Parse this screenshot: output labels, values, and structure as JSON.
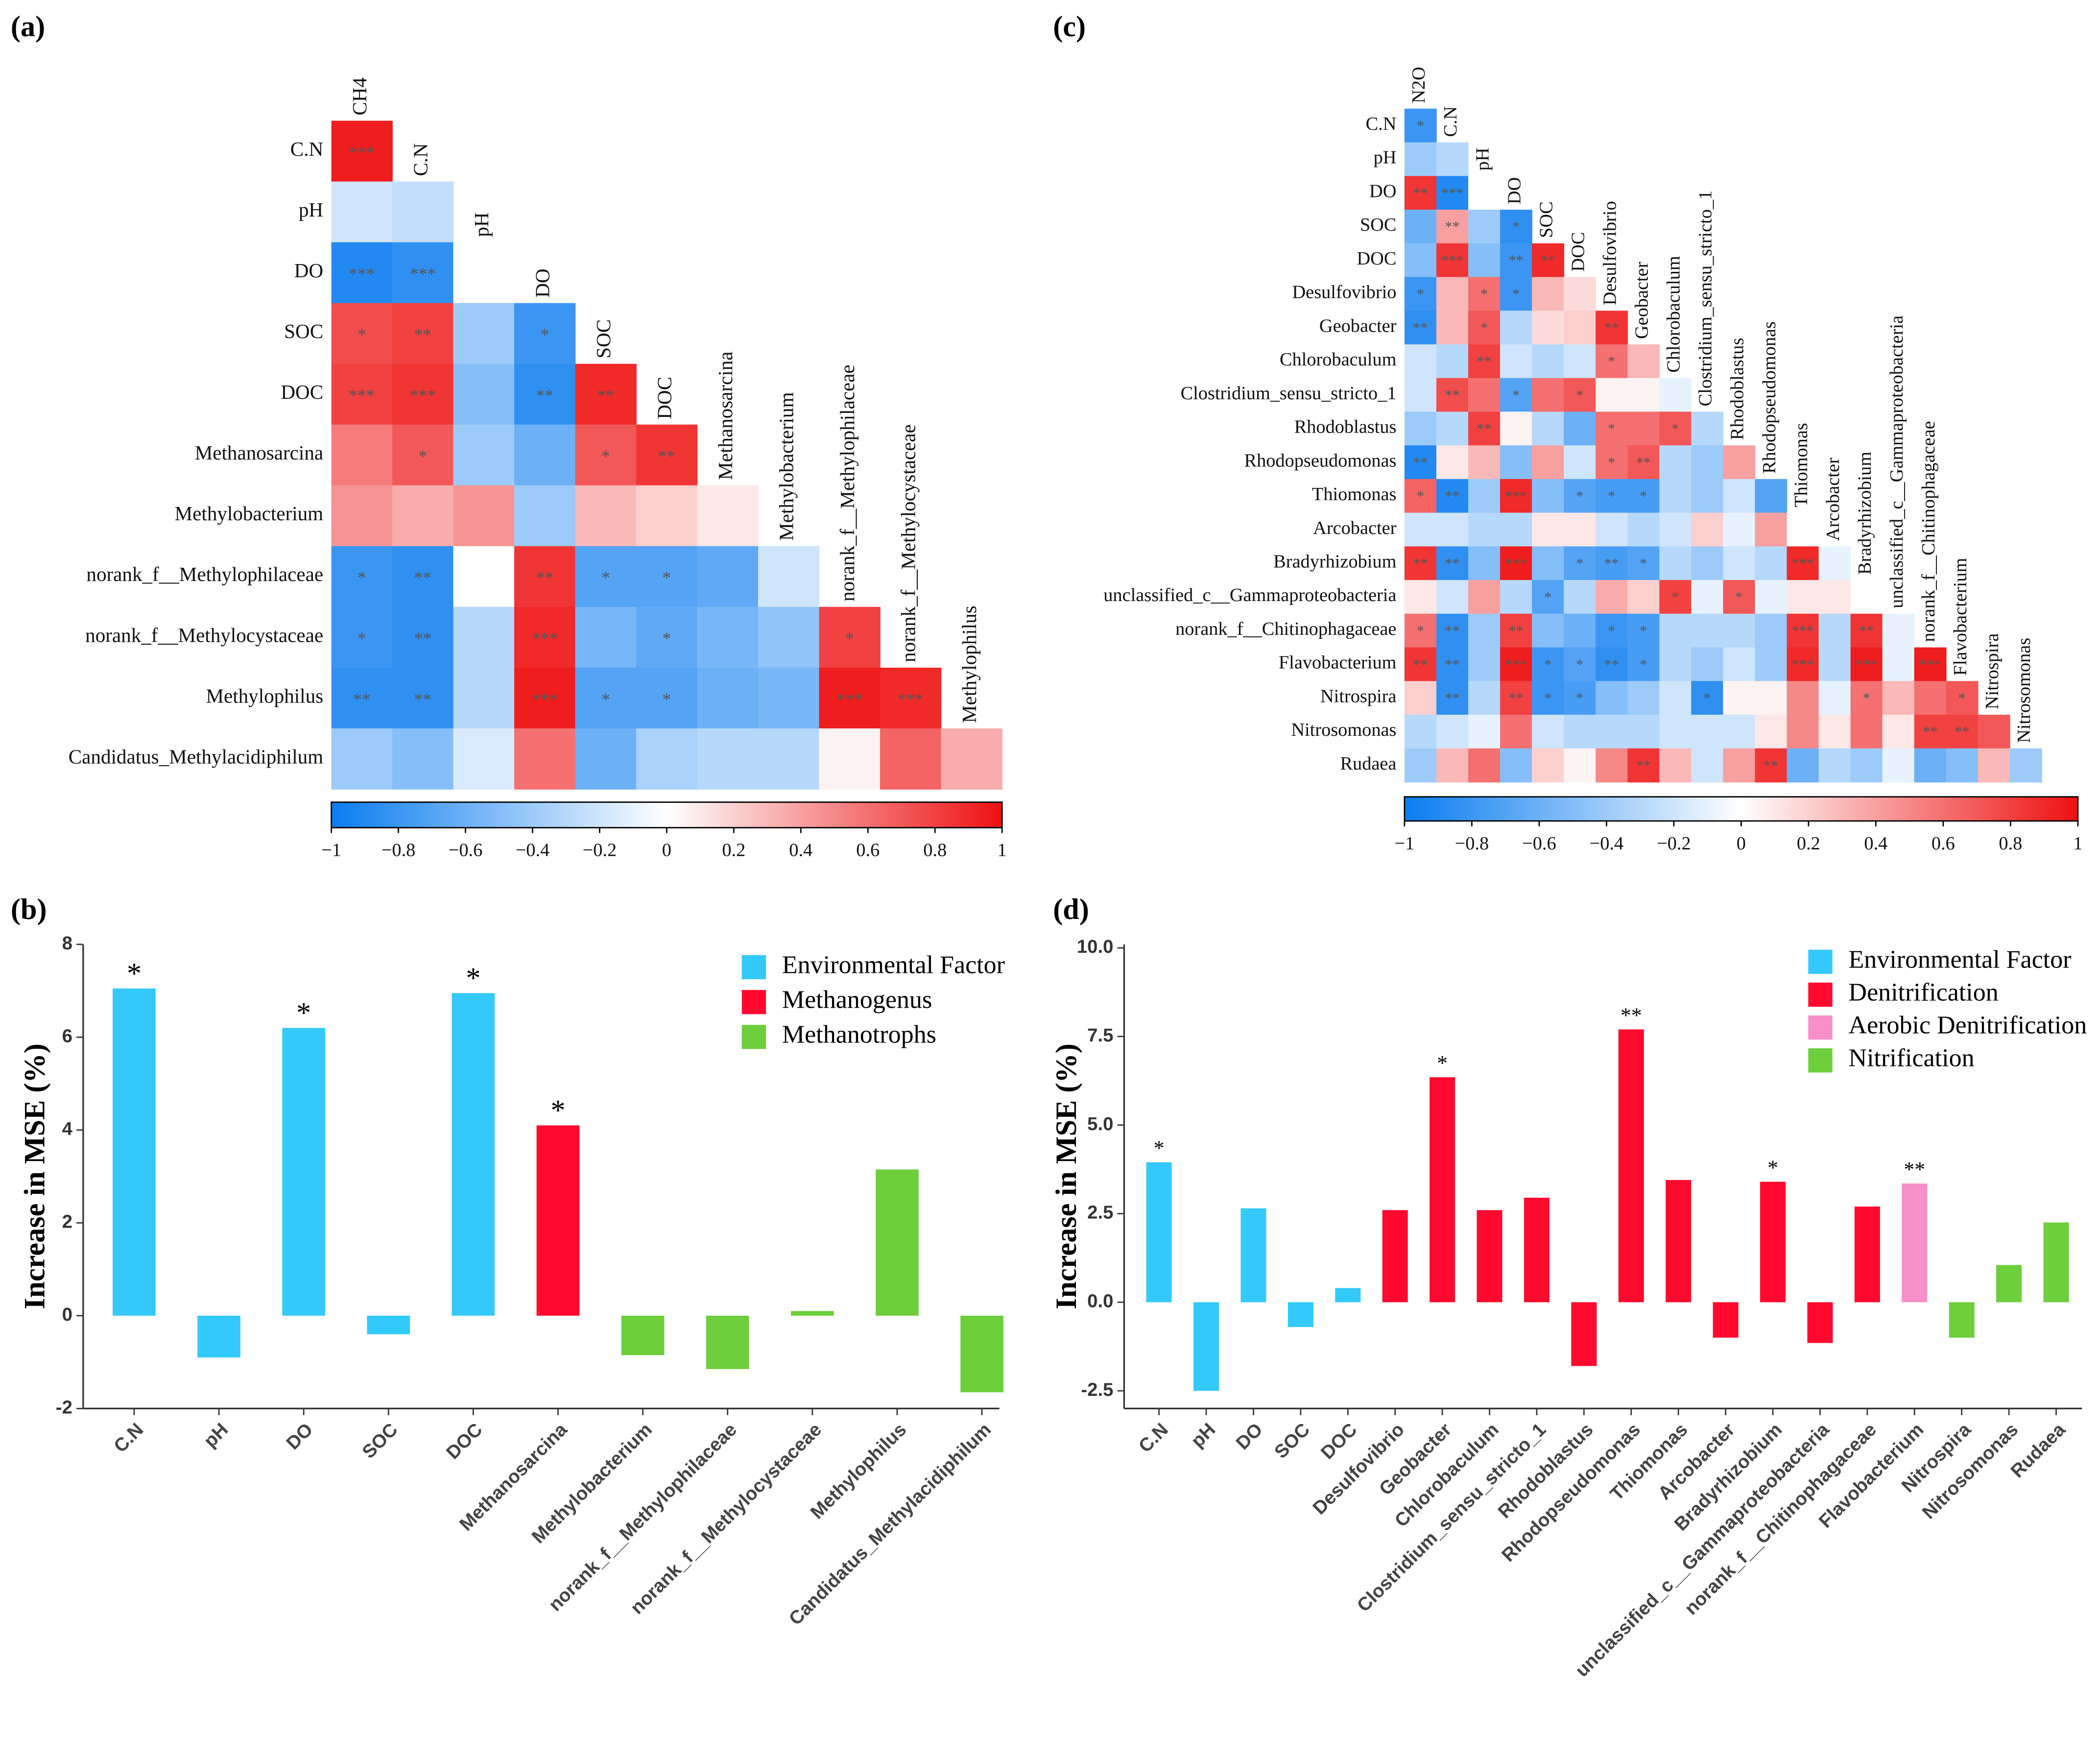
{
  "chart_data": [
    {
      "type": "heatmap",
      "panel": "(a)",
      "rows": [
        "C.N",
        "pH",
        "DO",
        "SOC",
        "DOC",
        "Methanosarcina",
        "Methylobacterium",
        "norank_f__Methylophilaceae",
        "norank_f__Methylocystaceae",
        "Methylophilus",
        "Candidatus_Methylacidiphilum"
      ],
      "columns": [
        "CH4",
        "C.N",
        "pH",
        "DO",
        "SOC",
        "DOC",
        "Methanosarcina",
        "Methylobacterium",
        "norank_f__Methylophilaceae",
        "norank_f__Methylocystaceae",
        "Methylophilus"
      ],
      "matrix": [
        [
          0.95
        ],
        [
          -0.2,
          -0.25
        ],
        [
          -0.9,
          -0.85,
          0.0
        ],
        [
          0.75,
          0.8,
          -0.4,
          -0.8
        ],
        [
          0.8,
          0.85,
          -0.5,
          -0.85,
          0.9
        ],
        [
          0.55,
          0.7,
          -0.4,
          -0.6,
          0.7,
          0.85
        ],
        [
          0.45,
          0.35,
          0.45,
          -0.4,
          0.3,
          0.2,
          0.1
        ],
        [
          -0.8,
          -0.85,
          0.0,
          0.85,
          -0.7,
          -0.7,
          -0.65,
          -0.2
        ],
        [
          -0.8,
          -0.85,
          -0.3,
          0.9,
          -0.55,
          -0.65,
          -0.55,
          -0.45,
          0.8
        ],
        [
          -0.85,
          -0.85,
          -0.3,
          0.95,
          -0.7,
          -0.7,
          -0.6,
          -0.55,
          0.95,
          0.9
        ],
        [
          -0.4,
          -0.5,
          -0.15,
          0.6,
          -0.6,
          -0.35,
          -0.3,
          -0.3,
          0.05,
          0.65,
          0.35
        ]
      ],
      "stars": [
        [
          "***"
        ],
        [
          null,
          null
        ],
        [
          "***",
          "***",
          null
        ],
        [
          "*",
          "**",
          null,
          "*"
        ],
        [
          "***",
          "***",
          null,
          "**",
          "**"
        ],
        [
          null,
          "*",
          null,
          null,
          "*",
          "**"
        ],
        [
          null,
          null,
          null,
          null,
          null,
          null,
          null
        ],
        [
          "*",
          "**",
          null,
          "**",
          "*",
          "*",
          null,
          null
        ],
        [
          "*",
          "**",
          null,
          "***",
          null,
          "*",
          null,
          null,
          "*"
        ],
        [
          "**",
          "**",
          null,
          "***",
          "*",
          "*",
          null,
          null,
          "***",
          "***"
        ],
        [
          null,
          null,
          null,
          null,
          null,
          null,
          null,
          null,
          null,
          null,
          null
        ]
      ],
      "zlim": [
        -1,
        1
      ],
      "zticks": [
        {
          "value": -1,
          "label": "−1"
        },
        {
          "value": -0.8,
          "label": "−0.8"
        },
        {
          "value": -0.6,
          "label": "−0.6"
        },
        {
          "value": -0.4,
          "label": "−0.4"
        },
        {
          "value": -0.2,
          "label": "−0.2"
        },
        0,
        0.2,
        0.4,
        0.6,
        0.8,
        1
      ],
      "colors": [
        "#0a7cf0",
        "#ffffff",
        "#ee1111"
      ]
    },
    {
      "type": "heatmap",
      "panel": "(c)",
      "rows": [
        "C.N",
        "pH",
        "DO",
        "SOC",
        "DOC",
        "Desulfovibrio",
        "Geobacter",
        "Chlorobaculum",
        "Clostridium_sensu_stricto_1",
        "Rhodoblastus",
        "Rhodopseudomonas",
        "Thiomonas",
        "Arcobacter",
        "Bradyrhizobium",
        "unclassified_c__Gammaproteobacteria",
        "norank_f__Chitinophagaceae",
        "Flavobacterium",
        "Nitrospira",
        "Nitrosomonas",
        "Rudaea"
      ],
      "columns": [
        "N2O",
        "C.N",
        "pH",
        "DO",
        "SOC",
        "DOC",
        "Desulfovibrio",
        "Geobacter",
        "Chlorobaculum",
        "Clostridium_sensu_stricto_1",
        "Rhodoblastus",
        "Rhodopseudomonas",
        "Thiomonas",
        "Arcobacter",
        "Bradyrhizobium",
        "unclassified_c__Gammaproteobacteria",
        "norank_f__Chitinophagaceae",
        "Flavobacterium",
        "Nitrospira",
        "Nitrosomonas"
      ],
      "matrix": [
        [
          -0.8
        ],
        [
          -0.4,
          -0.3
        ],
        [
          0.85,
          -0.9,
          0.0
        ],
        [
          -0.6,
          0.4,
          -0.4,
          -0.85
        ],
        [
          -0.5,
          0.85,
          -0.5,
          -0.8,
          0.9
        ],
        [
          -0.8,
          0.3,
          0.6,
          -0.8,
          0.3,
          0.15
        ],
        [
          -0.85,
          0.3,
          0.7,
          -0.3,
          0.15,
          0.2,
          0.85
        ],
        [
          -0.2,
          -0.3,
          0.8,
          -0.2,
          -0.3,
          -0.2,
          0.6,
          0.3
        ],
        [
          -0.2,
          0.75,
          0.6,
          -0.7,
          0.6,
          0.7,
          0.05,
          0.05,
          -0.1
        ],
        [
          -0.4,
          -0.3,
          0.8,
          0.05,
          -0.3,
          -0.6,
          0.6,
          0.6,
          0.7,
          -0.3
        ],
        [
          -0.9,
          0.1,
          0.3,
          -0.5,
          0.4,
          -0.2,
          0.6,
          0.7,
          -0.3,
          -0.4,
          0.4
        ],
        [
          0.65,
          -0.9,
          -0.4,
          0.9,
          -0.5,
          -0.7,
          -0.75,
          -0.75,
          -0.3,
          -0.4,
          -0.2,
          -0.7
        ],
        [
          -0.2,
          -0.2,
          -0.3,
          -0.3,
          0.1,
          0.1,
          -0.2,
          -0.3,
          -0.2,
          0.2,
          -0.1,
          0.4,
          0.0
        ],
        [
          0.85,
          -0.85,
          -0.5,
          0.95,
          -0.5,
          -0.7,
          -0.75,
          -0.7,
          -0.3,
          -0.4,
          -0.2,
          -0.3,
          0.9,
          -0.1
        ],
        [
          0.1,
          -0.2,
          0.4,
          -0.3,
          -0.7,
          -0.3,
          0.35,
          0.2,
          0.8,
          -0.1,
          0.7,
          -0.1,
          0.1,
          0.1,
          0.0
        ],
        [
          0.6,
          -0.85,
          -0.4,
          0.8,
          -0.5,
          -0.6,
          -0.8,
          -0.75,
          -0.3,
          -0.3,
          -0.3,
          -0.4,
          0.85,
          -0.3,
          0.85,
          -0.1
        ],
        [
          0.85,
          -0.85,
          -0.4,
          0.95,
          -0.8,
          -0.7,
          -0.85,
          -0.75,
          -0.3,
          -0.4,
          -0.2,
          -0.4,
          0.9,
          -0.3,
          0.95,
          -0.1,
          0.95
        ],
        [
          0.2,
          -0.85,
          -0.3,
          0.8,
          -0.8,
          -0.75,
          -0.5,
          -0.4,
          -0.2,
          -0.85,
          0.05,
          0.05,
          0.5,
          -0.1,
          0.6,
          0.3,
          0.6,
          0.7
        ],
        [
          -0.3,
          -0.2,
          -0.1,
          0.6,
          -0.2,
          -0.3,
          -0.3,
          -0.3,
          -0.2,
          -0.2,
          -0.2,
          0.1,
          0.5,
          0.1,
          0.6,
          0.1,
          0.8,
          0.8,
          0.7
        ],
        [
          -0.4,
          0.3,
          0.6,
          -0.5,
          0.2,
          0.05,
          0.5,
          0.85,
          0.3,
          -0.2,
          0.4,
          0.85,
          -0.6,
          -0.3,
          -0.4,
          -0.1,
          -0.6,
          -0.5,
          0.3,
          -0.4
        ]
      ],
      "stars": [
        [
          "*"
        ],
        [
          null,
          null
        ],
        [
          "**",
          "***",
          null
        ],
        [
          null,
          "**",
          null,
          "*"
        ],
        [
          null,
          "***",
          null,
          "**",
          "**"
        ],
        [
          "*",
          null,
          "*",
          "*",
          null,
          null
        ],
        [
          "**",
          null,
          "*",
          null,
          null,
          null,
          "**"
        ],
        [
          null,
          null,
          "**",
          null,
          null,
          null,
          "*",
          null
        ],
        [
          null,
          "**",
          null,
          "*",
          null,
          "*",
          null,
          null,
          null
        ],
        [
          null,
          null,
          "**",
          null,
          null,
          null,
          "*",
          null,
          "*",
          null
        ],
        [
          "**",
          null,
          null,
          null,
          null,
          null,
          "*",
          "**",
          null,
          null,
          null
        ],
        [
          "*",
          "**",
          null,
          "***",
          null,
          "*",
          "*",
          "*",
          null,
          null,
          null,
          null
        ],
        [
          null,
          null,
          null,
          null,
          null,
          null,
          null,
          null,
          null,
          null,
          null,
          null,
          null
        ],
        [
          "**",
          "**",
          null,
          "***",
          null,
          "*",
          "**",
          "*",
          null,
          null,
          null,
          null,
          "***",
          null
        ],
        [
          null,
          null,
          null,
          null,
          "*",
          null,
          null,
          null,
          "*",
          null,
          "*",
          null,
          null,
          null,
          null
        ],
        [
          "*",
          "**",
          null,
          "**",
          null,
          null,
          "*",
          "*",
          null,
          null,
          null,
          null,
          "***",
          null,
          "**",
          null
        ],
        [
          "**",
          "**",
          null,
          "***",
          "*",
          "*",
          "**",
          "*",
          null,
          null,
          null,
          null,
          "***",
          null,
          "***",
          null,
          "***"
        ],
        [
          null,
          "**",
          null,
          "**",
          "*",
          "*",
          null,
          null,
          null,
          "*",
          null,
          null,
          null,
          null,
          "*",
          null,
          null,
          "*"
        ],
        [
          null,
          null,
          null,
          null,
          null,
          null,
          null,
          null,
          null,
          null,
          null,
          null,
          null,
          null,
          null,
          null,
          "**",
          "**",
          null
        ],
        [
          null,
          null,
          null,
          null,
          null,
          null,
          null,
          "**",
          null,
          null,
          null,
          "**",
          null,
          null,
          null,
          null,
          null,
          null,
          null,
          null
        ]
      ],
      "zlim": [
        -1,
        1
      ],
      "zticks": [
        {
          "value": -1,
          "label": "−1"
        },
        {
          "value": -0.8,
          "label": "−0.8"
        },
        {
          "value": -0.6,
          "label": "−0.6"
        },
        {
          "value": -0.4,
          "label": "−0.4"
        },
        {
          "value": -0.2,
          "label": "−0.2"
        },
        0,
        0.2,
        0.4,
        0.6,
        0.8,
        1
      ],
      "colors": [
        "#0a7cf0",
        "#ffffff",
        "#ee1111"
      ]
    },
    {
      "type": "bar",
      "panel": "(b)",
      "ylabel": "Increase in MSE (%)",
      "categories": [
        "C.N",
        "pH",
        "DO",
        "SOC",
        "DOC",
        "Methanosarcina",
        "Methylobacterium",
        "norank_f__Methylophilaceae",
        "norank_f__Methylocystaceae",
        "Methylophilus",
        "Candidatus_Methylacidiphilum"
      ],
      "series": [
        {
          "name": "Environmental Factor",
          "color": "#33c9fb",
          "values": [
            7.05,
            -0.9,
            6.2,
            -0.4,
            6.95,
            null,
            null,
            null,
            null,
            null,
            null
          ]
        },
        {
          "name": "Methanogenus",
          "color": "#ff0a2e",
          "values": [
            null,
            null,
            null,
            null,
            null,
            4.1,
            null,
            null,
            null,
            null,
            null
          ]
        },
        {
          "name": "Methanotrophs",
          "color": "#6ccf3b",
          "values": [
            null,
            null,
            null,
            null,
            null,
            null,
            -0.85,
            -1.15,
            0.1,
            3.15,
            -1.65
          ]
        }
      ],
      "significance": [
        "*",
        null,
        "*",
        null,
        "*",
        "*",
        null,
        null,
        null,
        null,
        null
      ],
      "ylim": [
        -2,
        8
      ],
      "yticks": [
        -2,
        0,
        2,
        4,
        6,
        8
      ],
      "legend": "upper right"
    },
    {
      "type": "bar",
      "panel": "(d)",
      "ylabel": "Increase in MSE (%)",
      "categories": [
        "C.N",
        "pH",
        "DO",
        "SOC",
        "DOC",
        "Desulfovibrio",
        "Geobacter",
        "Chlorobaculum",
        "Clostridium_sensu_stricto_1",
        "Rhodoblastus",
        "Rhodopseudomonas",
        "Thiomonas",
        "Arcobacter",
        "Bradyrhizobium",
        "unclassified_c__Gammaproteobacteria",
        "norank_f__Chitinophagaceae",
        "Flavobacterium",
        "Nitrospira",
        "Nitrosomonas",
        "Rudaea"
      ],
      "series": [
        {
          "name": "Environmental Factor",
          "color": "#33c9fb",
          "values": [
            3.95,
            -2.5,
            2.65,
            -0.7,
            0.4,
            null,
            null,
            null,
            null,
            null,
            null,
            null,
            null,
            null,
            null,
            null,
            null,
            null,
            null,
            null
          ]
        },
        {
          "name": "Denitrification",
          "color": "#ff0a2e",
          "values": [
            null,
            null,
            null,
            null,
            null,
            2.6,
            6.35,
            2.6,
            2.95,
            -1.8,
            7.7,
            3.45,
            -1.0,
            3.4,
            -1.15,
            2.7,
            null,
            null,
            null,
            null
          ]
        },
        {
          "name": "Aerobic Denitrification",
          "color": "#f78fc8",
          "values": [
            null,
            null,
            null,
            null,
            null,
            null,
            null,
            null,
            null,
            null,
            null,
            null,
            null,
            null,
            null,
            null,
            3.35,
            null,
            null,
            null
          ]
        },
        {
          "name": "Nitrification",
          "color": "#6ccf3b",
          "values": [
            null,
            null,
            null,
            null,
            null,
            null,
            null,
            null,
            null,
            null,
            null,
            null,
            null,
            null,
            null,
            null,
            null,
            -1.0,
            1.05,
            2.25
          ]
        }
      ],
      "significance": [
        "*",
        null,
        null,
        null,
        null,
        null,
        "*",
        null,
        null,
        null,
        "**",
        null,
        null,
        "*",
        null,
        null,
        "**",
        null,
        null,
        null
      ],
      "ylim": [
        -3,
        10.1
      ],
      "yticks": [
        -2.5,
        {
          "value": 0,
          "label": "0.0"
        },
        2.5,
        {
          "value": 5,
          "label": "5.0"
        },
        7.5,
        {
          "value": 10,
          "label": "10.0"
        }
      ],
      "legend": "upper right"
    }
  ]
}
